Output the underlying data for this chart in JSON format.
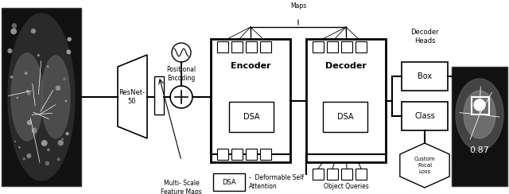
{
  "bg_color": "#ffffff",
  "fig_width": 6.4,
  "fig_height": 2.44,
  "dpi": 100,
  "annotations": {
    "multi_scale": "Multi- Scale\nFeature Maps",
    "refined_feature": "Refined Feature\nMaps",
    "positional_encoding": "Positional\nEncoding",
    "object_queries": "Object Queries",
    "decoder_heads": "Decoder\nHeads",
    "score": "0.87",
    "dsa_legend_text": "Deformable Self\nAttention"
  },
  "resnet_label": "ResNet-\n50",
  "encoder_label": "Encoder",
  "decoder_label": "Decoder",
  "focal_loss_label": "Custom\nFocal\nLoss"
}
